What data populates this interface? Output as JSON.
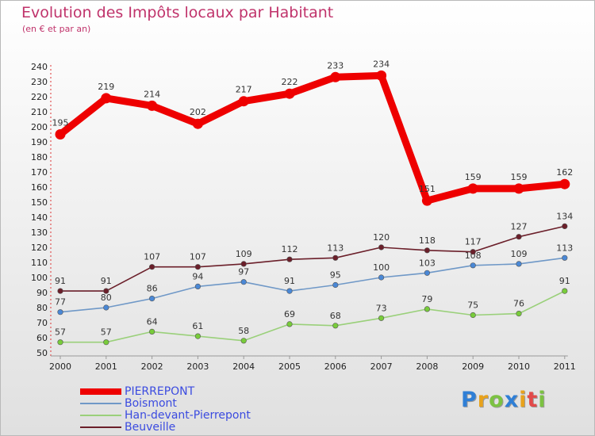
{
  "header": {
    "title": "Evolution des Impôts locaux par Habitant",
    "subtitle": "(en € et par an)"
  },
  "logo": {
    "text": "Proxiti",
    "letter_colors": [
      "#2f7fd6",
      "#e8a21c",
      "#7cc242",
      "#2f7fd6",
      "#e8a21c",
      "#e24a4a",
      "#7cc242"
    ]
  },
  "chart_data": {
    "type": "line",
    "title": "Evolution des Impôts locaux par Habitant",
    "subtitle": "(en € et par an)",
    "xlabel": "",
    "ylabel": "",
    "x": [
      "2000",
      "2001",
      "2002",
      "2003",
      "2004",
      "2005",
      "2006",
      "2007",
      "2008",
      "2009",
      "2010",
      "2011"
    ],
    "yticks": [
      50,
      60,
      70,
      80,
      90,
      100,
      110,
      120,
      130,
      140,
      150,
      160,
      170,
      180,
      190,
      200,
      210,
      220,
      230,
      240
    ],
    "ylim": [
      50,
      240
    ],
    "grid": false,
    "legend_position": "bottom-left",
    "series": [
      {
        "name": "PIERREPONT",
        "color": "#ee0000",
        "marker_color": "#ee0000",
        "values": [
          195,
          219,
          214,
          202,
          217,
          222,
          233,
          234,
          151,
          159,
          159,
          162
        ]
      },
      {
        "name": "Boismont",
        "color": "#6f98c7",
        "marker_color": "#4a88d6",
        "values": [
          77,
          80,
          86,
          94,
          97,
          91,
          95,
          100,
          103,
          108,
          109,
          113
        ]
      },
      {
        "name": "Han-devant-Pierrepont",
        "color": "#9ad07a",
        "marker_color": "#78cc3a",
        "values": [
          57,
          57,
          64,
          61,
          58,
          69,
          68,
          73,
          79,
          75,
          76,
          91
        ]
      },
      {
        "name": "Beuveille",
        "color": "#6b1f2a",
        "marker_color": "#6b1f2a",
        "values": [
          91,
          91,
          107,
          107,
          109,
          112,
          113,
          120,
          118,
          117,
          127,
          134
        ]
      }
    ]
  }
}
